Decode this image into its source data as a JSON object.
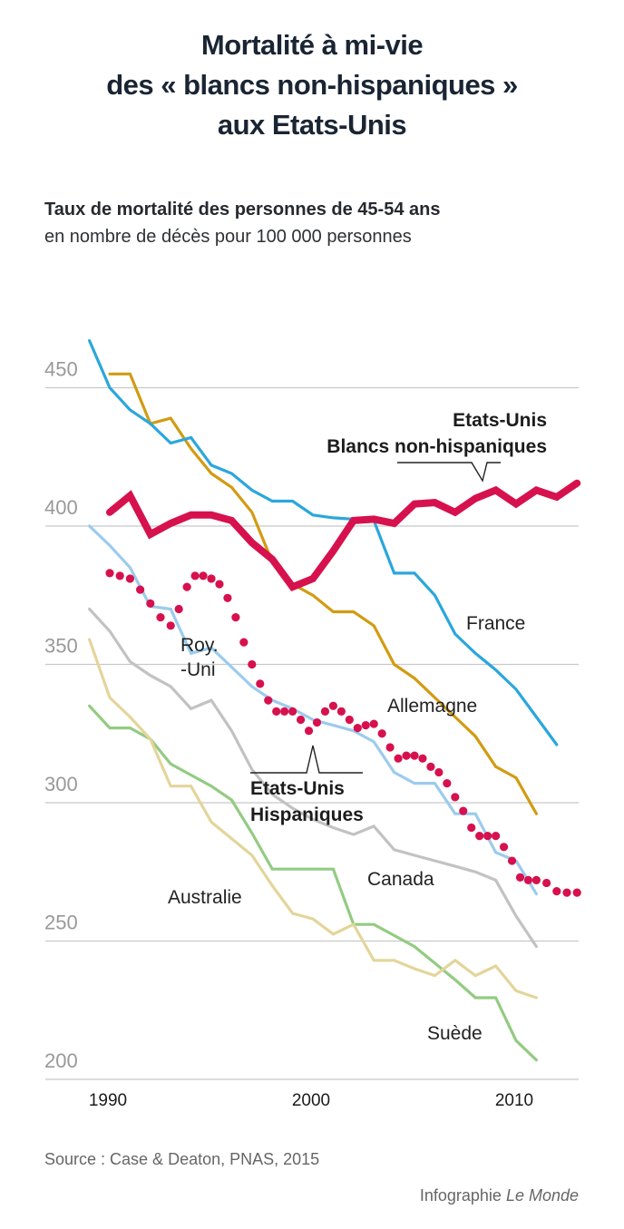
{
  "header": {
    "title_lines": [
      "Mortalité à mi-vie",
      "des « blancs non-hispaniques »",
      "aux Etats-Unis"
    ],
    "subtitle_bold": "Taux de mortalité des personnes de 45-54 ans",
    "subtitle_regular": "en nombre de décès pour 100 000 personnes"
  },
  "footer": {
    "source": "Source : Case & Deaton, PNAS, 2015",
    "credit_prefix": "Infographie ",
    "credit_brand": "Le Monde"
  },
  "chart_data": {
    "type": "line",
    "title": "Mortalité à mi-vie des « blancs non-hispaniques » aux Etats-Unis",
    "subtitle": "Taux de mortalité des personnes de 45-54 ans, en nombre de décès pour 100 000 personnes",
    "xlabel": "",
    "ylabel": "",
    "xlim": [
      1989,
      2013.6
    ],
    "ylim": [
      196,
      470
    ],
    "x_ticks": [
      1990,
      2000,
      2010
    ],
    "y_ticks": [
      200,
      250,
      300,
      350,
      400,
      450
    ],
    "grid": true,
    "series": [
      {
        "name": "France",
        "label": "France",
        "color": "#2aa7dc",
        "style": "solid",
        "label_lines": [
          "France"
        ],
        "x": [
          1989,
          1990,
          1991,
          1992,
          1993,
          1994,
          1995,
          1996,
          1997,
          1998,
          1999,
          2000,
          2001,
          2002,
          2003,
          2004,
          2005,
          2006,
          2007,
          2008,
          2009,
          2010,
          2011,
          2012
        ],
        "y": [
          467,
          450,
          442,
          437,
          430,
          432,
          422,
          419,
          413,
          409,
          409,
          404,
          403,
          402.5,
          402,
          383,
          383,
          375,
          361,
          354,
          348,
          341,
          331,
          321
        ]
      },
      {
        "name": "Allemagne",
        "label": "Allemagne",
        "color": "#d29b12",
        "style": "solid",
        "label_lines": [
          "Allemagne"
        ],
        "x": [
          1990,
          1991,
          1992,
          1993,
          1994,
          1995,
          1996,
          1997,
          1998,
          1999,
          2000,
          2001,
          2002,
          2003,
          2004,
          2005,
          2006,
          2007,
          2008,
          2009,
          2010,
          2011
        ],
        "y": [
          455,
          455,
          437,
          439,
          428,
          419,
          414,
          405,
          387,
          379,
          375,
          369,
          369,
          364,
          350,
          345,
          338,
          331,
          324,
          313,
          309,
          296
        ]
      },
      {
        "name": "Etats-Unis Blancs non-hispaniques",
        "label": "Etats-Unis Blancs non-hispaniques",
        "color": "#d6114e",
        "style": "thick",
        "label_lines": [
          "Etats-Unis",
          "Blancs non-hispaniques"
        ],
        "x": [
          1990,
          1991,
          1992,
          1993,
          1994,
          1995,
          1996,
          1997,
          1998,
          1999,
          2000,
          2001,
          2002,
          2003,
          2004,
          2005,
          2006,
          2007,
          2008,
          2009,
          2010,
          2011,
          2012,
          2013
        ],
        "y": [
          405,
          411,
          397,
          401,
          404,
          404,
          402,
          394,
          388,
          378,
          381,
          391,
          402,
          402.5,
          401,
          408,
          408.5,
          405,
          410,
          413,
          408,
          413,
          410.5,
          415.5
        ]
      },
      {
        "name": "Royaume-Uni",
        "label": "Roy.-Uni",
        "color": "#9ccbee",
        "style": "solid",
        "label_lines": [
          "Roy.",
          "-Uni"
        ],
        "x": [
          1989,
          1990,
          1991,
          1992,
          1993,
          1994,
          1995,
          1996,
          1997,
          1998,
          1999,
          2000,
          2001,
          2002,
          2003,
          2004,
          2005,
          2006,
          2007,
          2008,
          2009,
          2010,
          2011
        ],
        "y": [
          400,
          393,
          385,
          371,
          370,
          354,
          356,
          349,
          342,
          337,
          334,
          330,
          328,
          326,
          322,
          311,
          307,
          307,
          296,
          296,
          282,
          279,
          267
        ]
      },
      {
        "name": "Etats-Unis Hispaniques",
        "label": "Etats-Unis Hispaniques",
        "color": "#d6114e",
        "style": "dotted",
        "label_lines": [
          "Etats-Unis",
          "Hispaniques"
        ],
        "x": [
          1990,
          1990.5,
          1991,
          1991.5,
          1992,
          1992.5,
          1993,
          1993.4,
          1993.8,
          1994.2,
          1994.6,
          1995,
          1995.4,
          1995.8,
          1996.2,
          1996.6,
          1997,
          1997.4,
          1997.8,
          1998.2,
          1998.6,
          1999,
          1999.4,
          1999.8,
          2000.2,
          2000.6,
          2001,
          2001.4,
          2001.8,
          2002.2,
          2002.6,
          2003,
          2003.4,
          2003.8,
          2004.2,
          2004.6,
          2005,
          2005.4,
          2005.8,
          2006.2,
          2006.6,
          2007,
          2007.4,
          2007.8,
          2008.2,
          2008.6,
          2009,
          2009.4,
          2009.8,
          2010.2,
          2010.6,
          2011,
          2011.5,
          2012,
          2012.5,
          2013
        ],
        "y": [
          383,
          382,
          381,
          377,
          372,
          367,
          364,
          370,
          378,
          382,
          382,
          381,
          379,
          374,
          367,
          358,
          350,
          343,
          337,
          333,
          333,
          333,
          330,
          326,
          329,
          333,
          335,
          333,
          330,
          327,
          328,
          328.5,
          325,
          320,
          316,
          317,
          317,
          316,
          313,
          311,
          307,
          302,
          297,
          291,
          288,
          288,
          288,
          284,
          279,
          273,
          272,
          272,
          271,
          268,
          267.5,
          267.5
        ]
      },
      {
        "name": "Canada",
        "label": "Canada",
        "color": "#c2c2c2",
        "style": "solid",
        "label_lines": [
          "Canada"
        ],
        "x": [
          1989,
          1990,
          1991,
          1992,
          1993,
          1994,
          1995,
          1996,
          1997,
          1998,
          1999,
          2000,
          2001,
          2002,
          2003,
          2004,
          2005,
          2006,
          2007,
          2008,
          2009,
          2010,
          2011
        ],
        "y": [
          370,
          362,
          351,
          346,
          342,
          334,
          337,
          326,
          312,
          303,
          298,
          294,
          291,
          288.5,
          291.5,
          283,
          281,
          279,
          277,
          275,
          272,
          259,
          248
        ]
      },
      {
        "name": "Australie",
        "label": "Australie",
        "color": "#e3d59a",
        "style": "solid",
        "label_lines": [
          "Australie"
        ],
        "x": [
          1989,
          1990,
          1991,
          1992,
          1993,
          1994,
          1995,
          1996,
          1997,
          1998,
          1999,
          2000,
          2001,
          2002,
          2003,
          2004,
          2005,
          2006,
          2007,
          2008,
          2009,
          2010,
          2011
        ],
        "y": [
          359,
          338,
          331,
          323,
          306,
          306,
          293,
          287,
          281,
          270,
          260,
          258,
          252.5,
          256,
          243,
          243,
          240,
          237.5,
          243,
          237.5,
          241,
          232,
          229.5
        ]
      },
      {
        "name": "Suède",
        "label": "Suède",
        "color": "#93cb82",
        "style": "solid",
        "label_lines": [
          "Suède"
        ],
        "x": [
          1989,
          1990,
          1991,
          1992,
          1993,
          1994,
          1995,
          1996,
          1997,
          1998,
          1999,
          2000,
          2001,
          2002,
          2003,
          2004,
          2005,
          2006,
          2007,
          2008,
          2009,
          2010,
          2011
        ],
        "y": [
          335,
          327,
          327,
          323,
          314,
          310,
          306,
          301,
          289,
          276,
          276,
          276,
          276,
          256,
          256,
          252,
          248,
          242,
          236,
          229.5,
          229.5,
          214,
          207
        ]
      }
    ]
  }
}
